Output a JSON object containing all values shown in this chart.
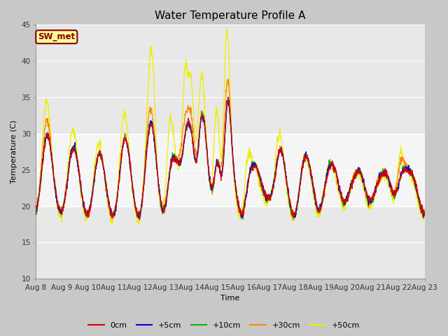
{
  "title": "Water Temperature Profile A",
  "xlabel": "Time",
  "ylabel": "Temperature (C)",
  "ylim": [
    10,
    45
  ],
  "n_days": 15,
  "bg_color": "#c8c8c8",
  "plot_bg": "#e8e8e8",
  "legend_label": "SW_met",
  "legend_box_color": "#ffff99",
  "legend_box_edge": "#880000",
  "legend_text_color": "#880000",
  "series_colors": {
    "0cm": "#dd0000",
    "+5cm": "#0000dd",
    "+10cm": "#00bb00",
    "+30cm": "#ff8800",
    "+50cm": "#eeee00"
  },
  "x_tick_labels": [
    "Aug 8",
    "Aug 9",
    "Aug 10",
    "Aug 11",
    "Aug 12",
    "Aug 13",
    "Aug 14",
    "Aug 15",
    "Aug 16",
    "Aug 17",
    "Aug 18",
    "Aug 19",
    "Aug 20",
    "Aug 21",
    "Aug 22",
    "Aug 23"
  ],
  "y_ticks": [
    10,
    15,
    20,
    25,
    30,
    35,
    40,
    45
  ],
  "shaded_band": [
    20,
    30
  ],
  "title_fontsize": 11,
  "axis_fontsize": 8,
  "tick_fontsize": 7.5
}
